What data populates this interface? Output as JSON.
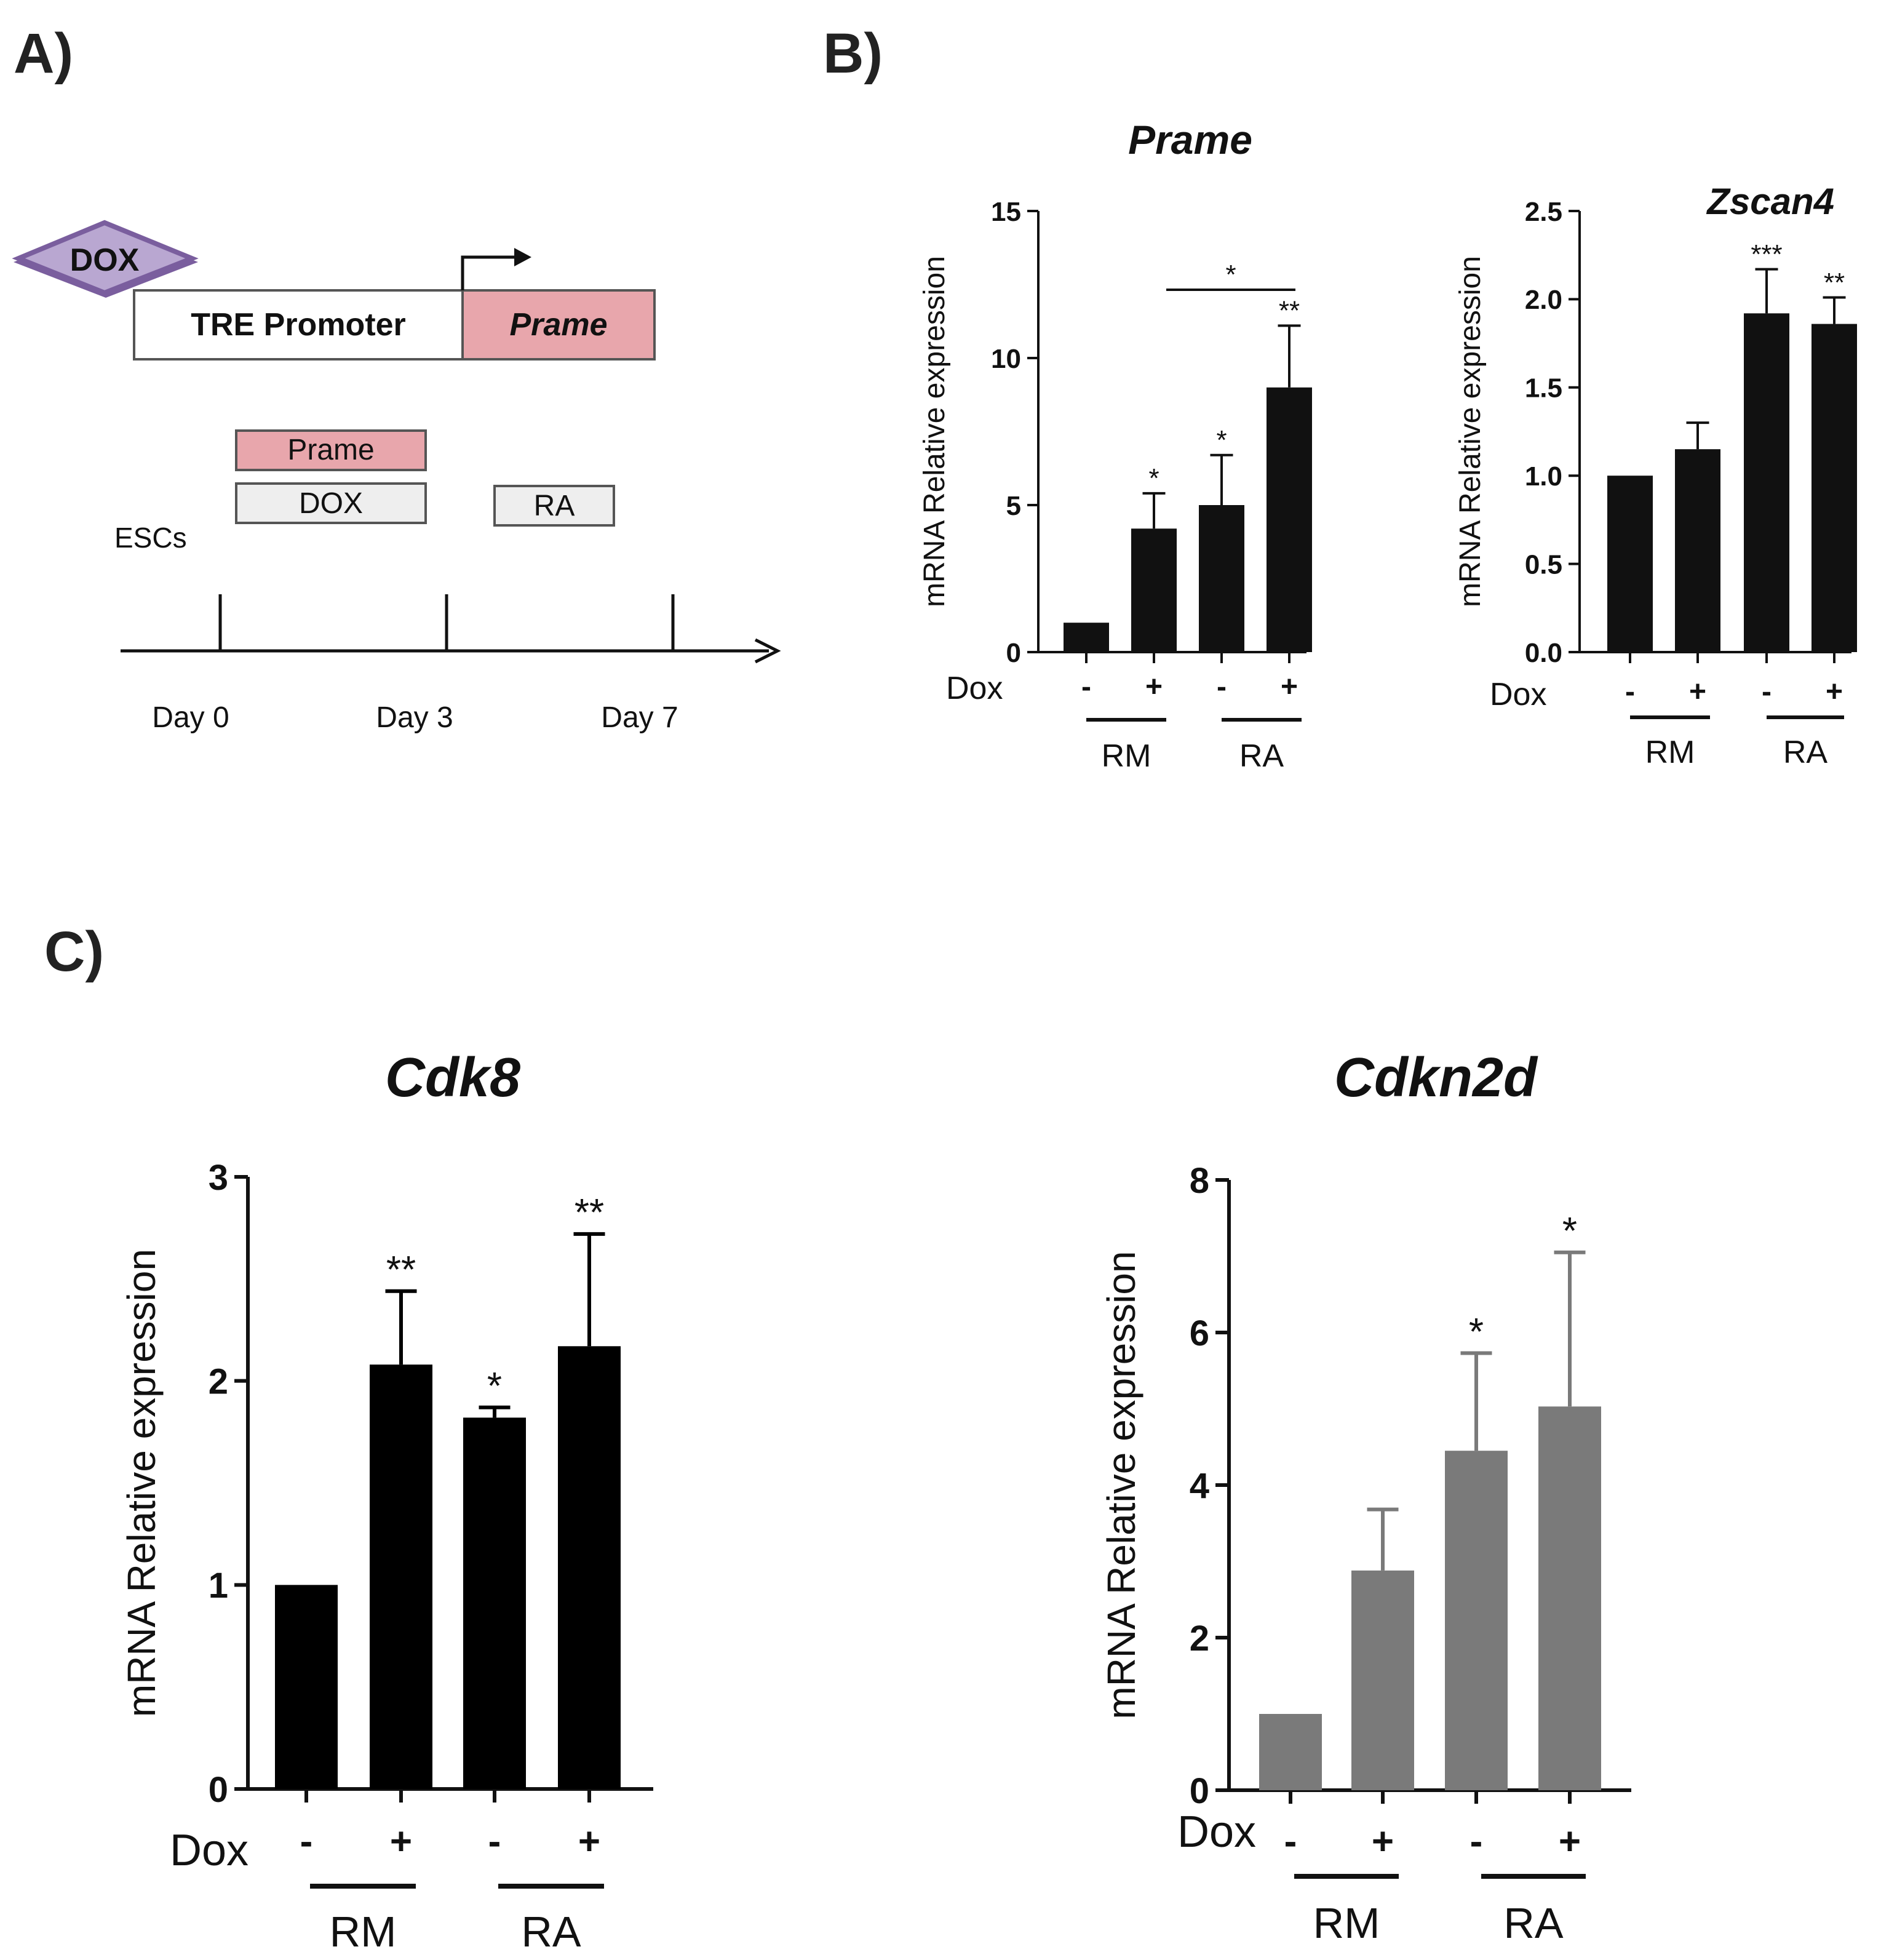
{
  "panels": {
    "a": "A)",
    "b": "B)",
    "c": "C)"
  },
  "diagram": {
    "inducer": "DOX",
    "promoter": "TRE Promoter",
    "gene": "Prame",
    "bars": {
      "prame": "Prame",
      "dox": "DOX",
      "ra": "RA"
    },
    "cells": "ESCs",
    "days": [
      "Day 0",
      "Day 3",
      "Day 7"
    ],
    "colors": {
      "diamond": "#b9a7d1",
      "diamond_border": "#7a5e9e",
      "pink": "#e8a6ac",
      "gray_box": "#eeeeee"
    }
  },
  "chart_data": [
    {
      "type": "bar",
      "title": "Prame",
      "xlabel": "Dox",
      "ylabel": "mRNA Relative expression",
      "ylim": [
        0,
        15
      ],
      "yticks": [
        0,
        5,
        10,
        15
      ],
      "ytick_labels": [
        "0",
        "5",
        "10",
        "15"
      ],
      "categories": [
        "-",
        "+",
        "-",
        "+"
      ],
      "groups": [
        "RM",
        "RA"
      ],
      "values": [
        1.0,
        4.2,
        5.0,
        9.0
      ],
      "errors": [
        0.0,
        1.2,
        1.7,
        2.1
      ],
      "significance": [
        "",
        "*",
        "*",
        "**"
      ],
      "comparison": {
        "from": 1,
        "to": 3,
        "label": "*"
      },
      "color": "#111111"
    },
    {
      "type": "bar",
      "title": "Zscan4",
      "xlabel": "Dox",
      "ylabel": "mRNA Relative expression",
      "ylim": [
        0,
        2.5
      ],
      "yticks": [
        0,
        0.5,
        1.0,
        1.5,
        2.0,
        2.5
      ],
      "ytick_labels": [
        "0.0",
        "0.5",
        "1.0",
        "1.5",
        "2.0",
        "2.5"
      ],
      "categories": [
        "-",
        "+",
        "-",
        "+"
      ],
      "groups": [
        "RM",
        "RA"
      ],
      "values": [
        1.0,
        1.15,
        1.92,
        1.86
      ],
      "errors": [
        0.0,
        0.15,
        0.25,
        0.15
      ],
      "significance": [
        "",
        "",
        "***",
        "**"
      ],
      "color": "#111111"
    },
    {
      "type": "bar",
      "title": "Cdk8",
      "xlabel": "Dox",
      "ylabel": "mRNA Relative expression",
      "ylim": [
        0,
        3
      ],
      "yticks": [
        0,
        1,
        2,
        3
      ],
      "ytick_labels": [
        "0",
        "1",
        "2",
        "3"
      ],
      "categories": [
        "-",
        "+",
        "-",
        "+"
      ],
      "groups": [
        "RM",
        "RA"
      ],
      "values": [
        1.0,
        2.08,
        1.82,
        2.17
      ],
      "errors": [
        0.0,
        0.36,
        0.05,
        0.55
      ],
      "significance": [
        "",
        "**",
        "*",
        "**"
      ],
      "color": "#000000"
    },
    {
      "type": "bar",
      "title": "Cdkn2d",
      "xlabel": "Dox",
      "ylabel": "mRNA Relative expression",
      "ylim": [
        0,
        8
      ],
      "yticks": [
        0,
        2,
        4,
        6,
        8
      ],
      "ytick_labels": [
        "0",
        "2",
        "4",
        "6",
        "8"
      ],
      "categories": [
        "-",
        "+",
        "-",
        "+"
      ],
      "groups": [
        "RM",
        "RA"
      ],
      "values": [
        1.0,
        2.88,
        4.45,
        5.03
      ],
      "errors": [
        0.0,
        0.8,
        1.28,
        2.02
      ],
      "significance": [
        "",
        "",
        "*",
        "*"
      ],
      "color": "#7a7a7a"
    }
  ]
}
